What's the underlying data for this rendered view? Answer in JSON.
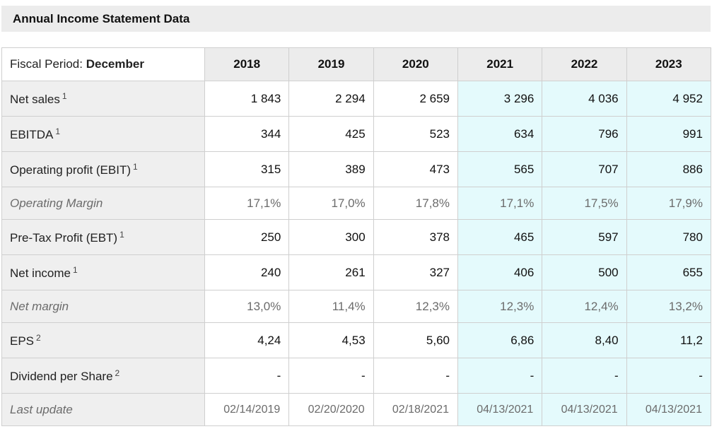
{
  "title": "Annual Income Statement Data",
  "fiscal_period": {
    "label": "Fiscal Period:",
    "value": "December"
  },
  "years": [
    "2018",
    "2019",
    "2020",
    "2021",
    "2022",
    "2023"
  ],
  "projected_from_index": 3,
  "colors": {
    "header_bg": "#ececec",
    "label_bg": "#efefef",
    "projection_bg": "#e4fafc",
    "border": "#cfcfcf"
  },
  "rows": [
    {
      "label": "Net sales",
      "note": "1",
      "style": "normal",
      "values": [
        "1 843",
        "2 294",
        "2 659",
        "3 296",
        "4 036",
        "4 952"
      ]
    },
    {
      "label": "EBITDA",
      "note": "1",
      "style": "normal",
      "values": [
        "344",
        "425",
        "523",
        "634",
        "796",
        "991"
      ]
    },
    {
      "label": "Operating profit (EBIT)",
      "note": "1",
      "style": "normal",
      "values": [
        "315",
        "389",
        "473",
        "565",
        "707",
        "886"
      ]
    },
    {
      "label": "Operating Margin",
      "note": "",
      "style": "italic",
      "values": [
        "17,1%",
        "17,0%",
        "17,8%",
        "17,1%",
        "17,5%",
        "17,9%"
      ]
    },
    {
      "label": "Pre-Tax Profit (EBT)",
      "note": "1",
      "style": "normal",
      "values": [
        "250",
        "300",
        "378",
        "465",
        "597",
        "780"
      ]
    },
    {
      "label": "Net income",
      "note": "1",
      "style": "normal",
      "values": [
        "240",
        "261",
        "327",
        "406",
        "500",
        "655"
      ]
    },
    {
      "label": "Net margin",
      "note": "",
      "style": "italic",
      "values": [
        "13,0%",
        "11,4%",
        "12,3%",
        "12,3%",
        "12,4%",
        "13,2%"
      ]
    },
    {
      "label": "EPS",
      "note": "2",
      "style": "normal",
      "values": [
        "4,24",
        "4,53",
        "5,60",
        "6,86",
        "8,40",
        "11,2"
      ]
    },
    {
      "label": "Dividend per Share",
      "note": "2",
      "style": "normal",
      "values": [
        "-",
        "-",
        "-",
        "-",
        "-",
        "-"
      ]
    },
    {
      "label": "Last update",
      "note": "",
      "style": "date",
      "values": [
        "02/14/2019",
        "02/20/2020",
        "02/18/2021",
        "04/13/2021",
        "04/13/2021",
        "04/13/2021"
      ]
    }
  ]
}
